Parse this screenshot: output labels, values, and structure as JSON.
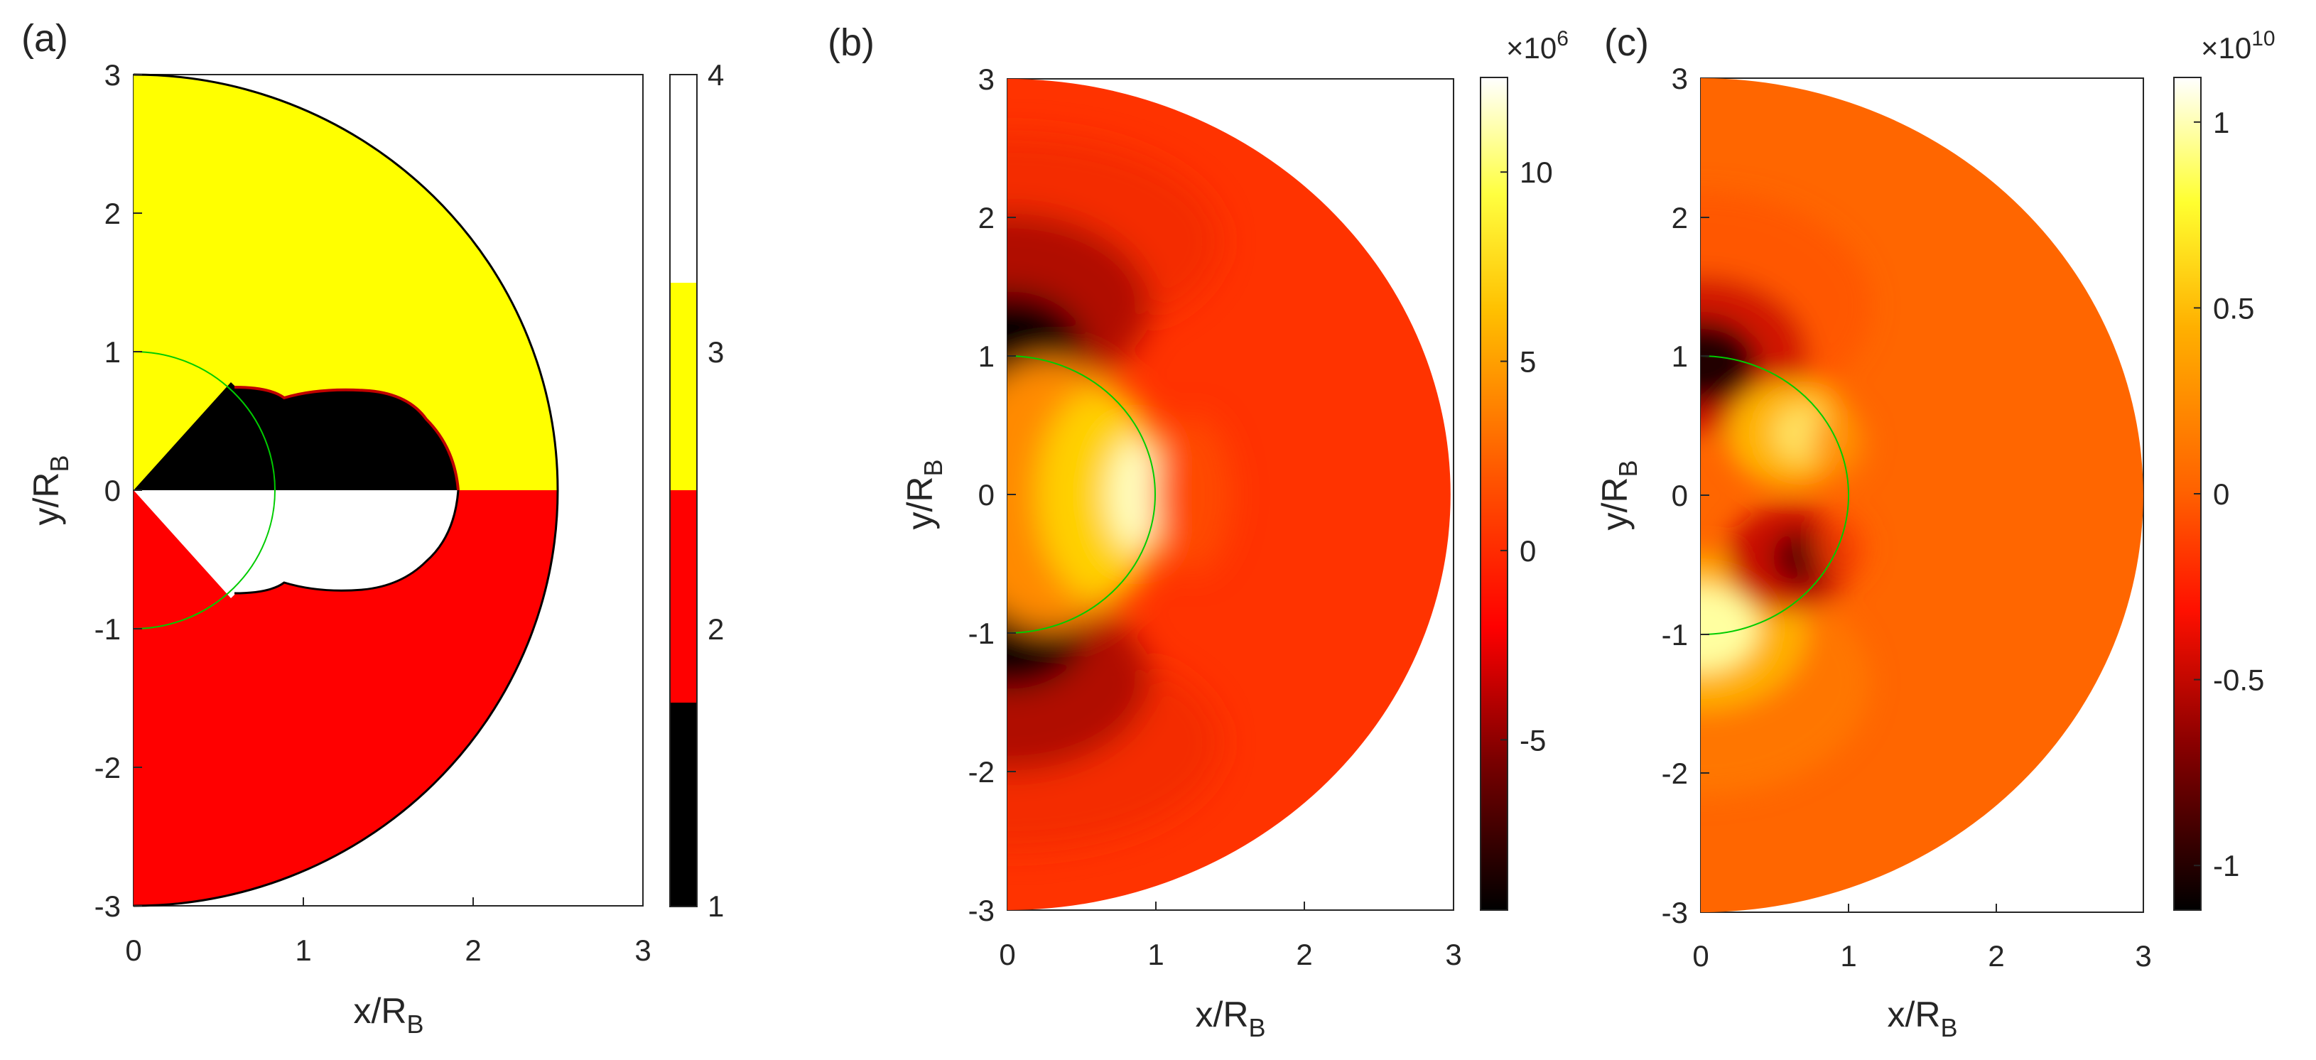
{
  "chart_data": [
    {
      "panel": "(a)",
      "type": "heatmap",
      "description_type": "categorical region map",
      "xlabel": "x/R",
      "xlabel_sub": "B",
      "ylabel": "y/R",
      "ylabel_sub": "B",
      "xlim": [
        0,
        3
      ],
      "ylim": [
        -3,
        3
      ],
      "xticks": [
        "0",
        "1",
        "2",
        "3"
      ],
      "yticks": [
        "-3",
        "-2",
        "-1",
        "0",
        "1",
        "2",
        "3"
      ],
      "colorbar": {
        "range": [
          1,
          4
        ],
        "ticks": [
          "1",
          "2",
          "3",
          "4"
        ],
        "levels": [
          {
            "value": 1,
            "color": "#000000"
          },
          {
            "value": 2,
            "color": "#ff0000"
          },
          {
            "value": 3,
            "color": "#ffff00"
          },
          {
            "value": 4,
            "color": "#ffffff"
          }
        ]
      },
      "regions": [
        {
          "name": "outer-upper",
          "value": 3
        },
        {
          "name": "outer-lower",
          "value": 2
        },
        {
          "name": "inner-upper",
          "value": 1
        },
        {
          "name": "inner-lower",
          "value": 4
        }
      ],
      "unit_circle_radius": 1,
      "domain_radius": 3
    },
    {
      "panel": "(b)",
      "type": "heatmap",
      "xlabel": "x/R",
      "xlabel_sub": "B",
      "ylabel": "y/R",
      "ylabel_sub": "B",
      "xlim": [
        0,
        3
      ],
      "ylim": [
        -3,
        3
      ],
      "xticks": [
        "0",
        "1",
        "2",
        "3"
      ],
      "yticks": [
        "-3",
        "-2",
        "-1",
        "0",
        "1",
        "2",
        "3"
      ],
      "colorbar": {
        "range": [
          -9.5,
          12.5
        ],
        "ticks": [
          -5,
          0,
          5,
          10
        ],
        "tick_labels": [
          "-5",
          "0",
          "5",
          "10"
        ],
        "multiplier_base": "×10",
        "multiplier_exp": "6"
      },
      "features": [
        {
          "name": "positive peak",
          "x": 0.95,
          "y": 0,
          "value": 12.5
        },
        {
          "name": "negative lobe upper",
          "x": 0,
          "y": 1,
          "value": -9.5
        },
        {
          "name": "negative lobe lower",
          "x": 0,
          "y": -1,
          "value": -9.5
        }
      ],
      "background_value": 0
    },
    {
      "panel": "(c)",
      "type": "heatmap",
      "xlabel": "x/R",
      "xlabel_sub": "B",
      "ylabel": "y/R",
      "ylabel_sub": "B",
      "xlim": [
        0,
        3
      ],
      "ylim": [
        -3,
        3
      ],
      "xticks": [
        "0",
        "1",
        "2",
        "3"
      ],
      "yticks": [
        "-3",
        "-2",
        "-1",
        "0",
        "1",
        "2",
        "3"
      ],
      "colorbar": {
        "range": [
          -1.12,
          1.12
        ],
        "ticks": [
          -1,
          -0.5,
          0,
          0.5,
          1
        ],
        "tick_labels": [
          "-1",
          "-0.5",
          "0",
          "0.5",
          "1"
        ],
        "multiplier_base": "×10",
        "multiplier_exp": "10"
      },
      "features": [
        {
          "name": "negative upper",
          "x": 0,
          "y": 1,
          "value": -1.1
        },
        {
          "name": "positive upper-right",
          "x": 0.75,
          "y": 0.45,
          "value": 0.8
        },
        {
          "name": "negative lower-right",
          "x": 0.75,
          "y": -0.45,
          "value": -0.8
        },
        {
          "name": "positive lower",
          "x": 0,
          "y": -1,
          "value": 1.1
        }
      ],
      "background_value": 0
    }
  ]
}
